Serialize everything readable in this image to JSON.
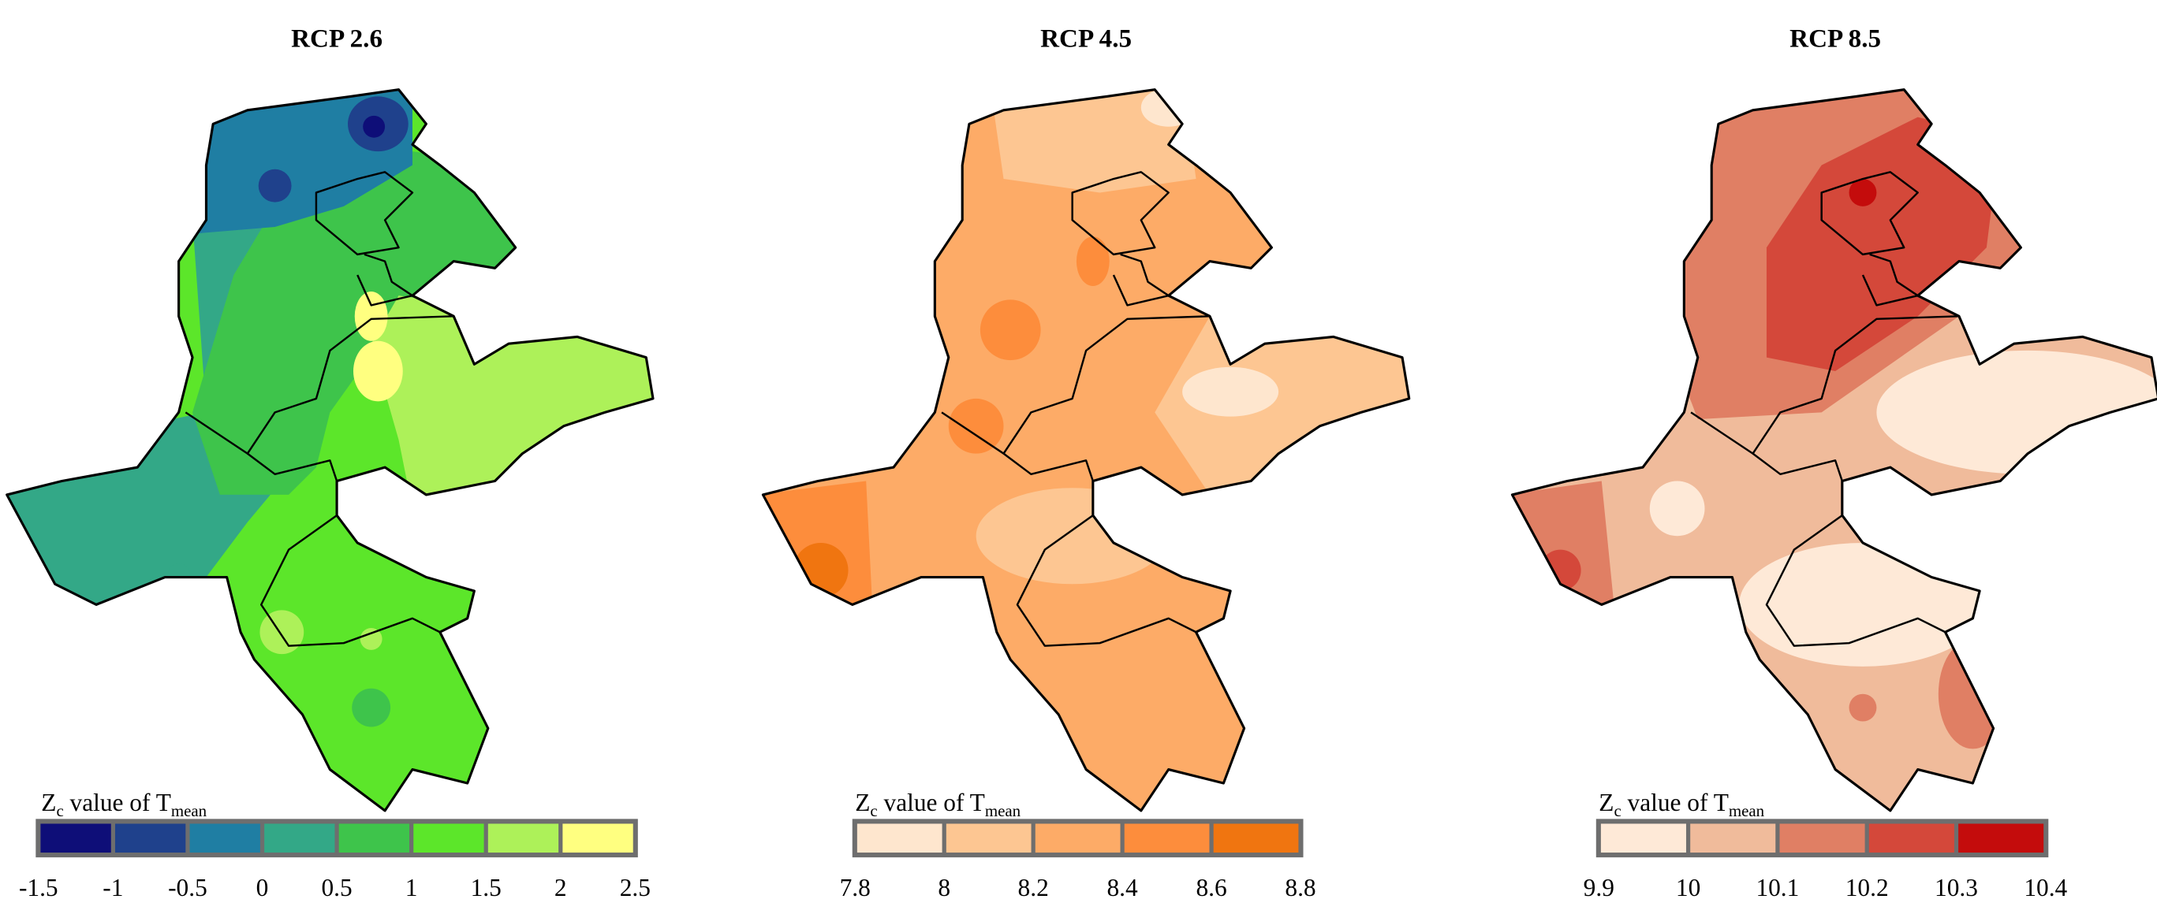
{
  "panels": [
    {
      "title": "RCP 2.6",
      "legend": {
        "title_main": "Z",
        "title_sub1": "c",
        "title_mid": " value of T",
        "title_sub2": "mean",
        "ticks": [
          "-1.5",
          "-1",
          "-0.5",
          "0",
          "0.5",
          "1",
          "1.5",
          "2",
          "2.5"
        ],
        "colors": [
          "#0E0E78",
          "#1F418C",
          "#1F7EA3",
          "#33A887",
          "#3EC44B",
          "#5CE62A",
          "#ADF159",
          "#FFFF80"
        ]
      }
    },
    {
      "title": "RCP 4.5",
      "legend": {
        "title_main": "Z",
        "title_sub1": "c",
        "title_mid": " value of T",
        "title_sub2": "mean",
        "ticks": [
          "7.8",
          "8",
          "8.2",
          "8.4",
          "8.6",
          "8.8"
        ],
        "colors": [
          "#FEE6CE",
          "#FDC692",
          "#FDAB67",
          "#FD8D3C",
          "#F07510"
        ]
      }
    },
    {
      "title": "RCP 8.5",
      "legend": {
        "title_main": "Z",
        "title_sub1": "c",
        "title_mid": " value of T",
        "title_sub2": "mean",
        "ticks": [
          "9.9",
          "10",
          "10.1",
          "10.2",
          "10.3",
          "10.4"
        ],
        "colors": [
          "#FEE9D7",
          "#F0BB9B",
          "#E07F64",
          "#D4483A",
          "#C40C0C"
        ]
      }
    }
  ]
}
